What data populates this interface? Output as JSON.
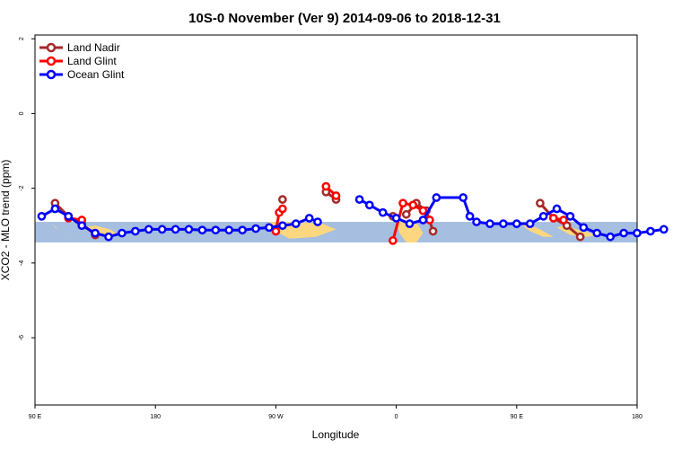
{
  "colors": {
    "land_nadir": "#a52a2a",
    "land_glint": "#ff0000",
    "ocean_glint": "#0000ff",
    "band": "#a6bedf",
    "land": "#fcd77f"
  },
  "chart_data": {
    "type": "line",
    "title": "10S-0 November (Ver 9)   2014-09-06 to 2018-12-31",
    "xlabel": "Longitude",
    "ylabel": "XCO2 - MLO trend (ppm)",
    "xlim": [
      90,
      450
    ],
    "ylim": [
      -7.8,
      2.1
    ],
    "x_ticks": [
      {
        "value": 90,
        "label": "90 E"
      },
      {
        "value": 162,
        "label": "180"
      },
      {
        "value": 234,
        "label": "90 W"
      },
      {
        "value": 306,
        "label": "0"
      },
      {
        "value": 378,
        "label": "90 E"
      },
      {
        "value": 450,
        "label": "180"
      }
    ],
    "y_ticks": [
      {
        "value": 2,
        "label": "2"
      },
      {
        "value": 0,
        "label": "0"
      },
      {
        "value": -2,
        "label": "-2"
      },
      {
        "value": -4,
        "label": "-4"
      },
      {
        "value": -6,
        "label": "-6"
      }
    ],
    "band_range": [
      -2.9,
      -3.45
    ],
    "land_regions": [
      [
        [
          100,
          -2.95
        ],
        [
          104,
          -3.1
        ],
        [
          110,
          -3.25
        ],
        [
          114,
          -3.35
        ],
        [
          108,
          -3.2
        ],
        [
          102,
          -3.05
        ]
      ],
      [
        [
          118,
          -3.05
        ],
        [
          124,
          -3.2
        ],
        [
          132,
          -3.3
        ],
        [
          140,
          -3.25
        ],
        [
          135,
          -3.1
        ],
        [
          126,
          -3.0
        ]
      ],
      [
        [
          230,
          -2.9
        ],
        [
          242,
          -2.9
        ],
        [
          262,
          -2.95
        ],
        [
          270,
          -3.1
        ],
        [
          258,
          -3.3
        ],
        [
          242,
          -3.35
        ],
        [
          234,
          -3.15
        ]
      ],
      [
        [
          306,
          -2.9
        ],
        [
          318,
          -2.9
        ],
        [
          322,
          -3.2
        ],
        [
          318,
          -3.45
        ],
        [
          312,
          -3.45
        ],
        [
          308,
          -3.2
        ]
      ],
      [
        [
          380,
          -2.95
        ],
        [
          386,
          -3.15
        ],
        [
          394,
          -3.3
        ],
        [
          400,
          -3.3
        ],
        [
          392,
          -3.1
        ],
        [
          384,
          -2.95
        ]
      ],
      [
        [
          402,
          -3.05
        ],
        [
          410,
          -3.25
        ],
        [
          420,
          -3.3
        ],
        [
          426,
          -3.25
        ],
        [
          414,
          -3.1
        ],
        [
          406,
          -3.0
        ]
      ]
    ],
    "series": [
      {
        "name": "Land Nadir",
        "color": "#a52a2a",
        "segments": [
          [
            [
              102,
              -2.4
            ],
            [
              110,
              -2.75
            ],
            [
              118,
              -2.95
            ],
            [
              126,
              -3.25
            ]
          ],
          [
            [
              238,
              -2.3
            ]
          ],
          [
            [
              264,
              -2.1
            ],
            [
              270,
              -2.3
            ]
          ],
          [
            [
              304,
              -2.75
            ]
          ],
          [
            [
              312,
              -2.7
            ],
            [
              318,
              -2.4
            ],
            [
              324,
              -2.6
            ],
            [
              328,
              -3.15
            ]
          ],
          [
            [
              392,
              -2.4
            ],
            [
              400,
              -2.8
            ],
            [
              408,
              -3.0
            ],
            [
              416,
              -3.3
            ]
          ]
        ]
      },
      {
        "name": "Land Glint",
        "color": "#ff0000",
        "segments": [
          [
            [
              110,
              -2.8
            ],
            [
              118,
              -2.85
            ]
          ],
          [
            [
              234,
              -3.15
            ],
            [
              236,
              -2.65
            ],
            [
              238,
              -2.55
            ]
          ],
          [
            [
              264,
              -1.95
            ],
            [
              270,
              -2.2
            ]
          ],
          [
            [
              304,
              -3.4
            ],
            [
              310,
              -2.4
            ],
            [
              316,
              -2.45
            ],
            [
              322,
              -2.6
            ],
            [
              326,
              -2.85
            ]
          ],
          [
            [
              400,
              -2.8
            ],
            [
              406,
              -2.85
            ]
          ]
        ]
      },
      {
        "name": "Ocean Glint",
        "color": "#0000ff",
        "segments": [
          [
            [
              94,
              -2.75
            ],
            [
              102,
              -2.55
            ],
            [
              110,
              -2.75
            ],
            [
              118,
              -3.0
            ],
            [
              126,
              -3.2
            ],
            [
              134,
              -3.3
            ],
            [
              142,
              -3.2
            ],
            [
              150,
              -3.15
            ],
            [
              158,
              -3.1
            ],
            [
              166,
              -3.1
            ],
            [
              174,
              -3.1
            ],
            [
              182,
              -3.1
            ],
            [
              190,
              -3.12
            ],
            [
              198,
              -3.12
            ],
            [
              206,
              -3.12
            ],
            [
              214,
              -3.12
            ],
            [
              222,
              -3.08
            ],
            [
              230,
              -3.05
            ],
            [
              238,
              -3.0
            ],
            [
              246,
              -2.95
            ],
            [
              254,
              -2.8
            ],
            [
              259,
              -2.9
            ]
          ],
          [
            [
              284,
              -2.3
            ],
            [
              290,
              -2.45
            ],
            [
              298,
              -2.65
            ],
            [
              306,
              -2.8
            ],
            [
              314,
              -2.95
            ],
            [
              322,
              -2.85
            ],
            [
              330,
              -2.25
            ],
            [
              346,
              -2.25
            ],
            [
              350,
              -2.75
            ],
            [
              354,
              -2.9
            ],
            [
              362,
              -2.95
            ],
            [
              370,
              -2.95
            ],
            [
              378,
              -2.95
            ],
            [
              386,
              -2.95
            ],
            [
              394,
              -2.75
            ],
            [
              402,
              -2.55
            ],
            [
              410,
              -2.75
            ],
            [
              418,
              -3.05
            ],
            [
              426,
              -3.2
            ],
            [
              434,
              -3.3
            ],
            [
              442,
              -3.2
            ],
            [
              450,
              -3.2
            ],
            [
              458,
              -3.15
            ],
            [
              466,
              -3.1
            ]
          ]
        ]
      }
    ],
    "legend": {
      "position": "top-left",
      "entries": [
        "Land Nadir",
        "Land Glint",
        "Ocean Glint"
      ]
    }
  }
}
